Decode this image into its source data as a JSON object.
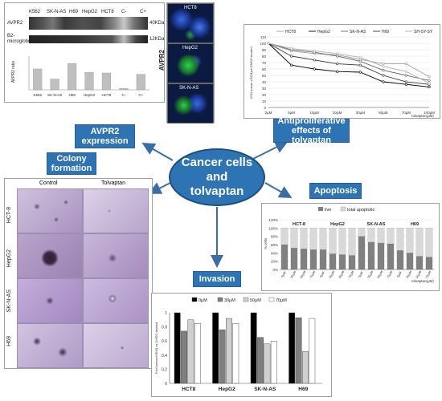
{
  "center": {
    "line1": "Cancer cells",
    "line2": "and",
    "line3": "tolvaptan"
  },
  "labels": {
    "avpr2": "AVPR2 expression",
    "antiprolif": "Antiproliferative effects of tolvaptan",
    "colony": "Colony formation",
    "apoptosis": "Apoptosis",
    "invasion": "Invasion"
  },
  "blot": {
    "cell_lines": [
      "K562",
      "SK-N-AS",
      "H69",
      "HepG2",
      "HCT8",
      "C-",
      "C+"
    ],
    "row1": "AVPR2",
    "row2": "B2-microglobulin",
    "kda1": "40KDa",
    "kda2": "12KDa",
    "ylabel": "AVPR2 ratio",
    "bar_labels": [
      "K562",
      "SK-N-AS",
      "H69",
      "HepG2",
      "HCT8",
      "C-",
      "C+"
    ],
    "bar_values": [
      0.62,
      0.32,
      0.78,
      0.52,
      0.5,
      0.04,
      0.46
    ]
  },
  "micro": {
    "title_top": "HCT8",
    "title_mid": "HepG2",
    "title_bot": "SK-N-AS",
    "side": "AVPR2"
  },
  "prolif": {
    "ylabel": "IC50 (mean ±SEM)vs DMSO-treated",
    "xlabel": "tolvaptan(µM)",
    "categories": [
      "0µM",
      "5µM",
      "10µM",
      "20µM",
      "30µM",
      "50µM",
      "70µM",
      "100µM"
    ],
    "yticks": [
      "110",
      "100",
      "90",
      "80",
      "70",
      "60",
      "50",
      "40",
      "30",
      "20",
      "10",
      "0"
    ],
    "series": [
      {
        "name": "HCT8",
        "values": [
          100,
          88,
          84,
          82,
          75,
          68,
          68,
          48
        ],
        "color": "#9e9e9e"
      },
      {
        "name": "HepG2",
        "values": [
          100,
          66,
          60,
          56,
          55,
          40,
          36,
          32
        ],
        "color": "#000000"
      },
      {
        "name": "SK-N-AS",
        "values": [
          100,
          90,
          86,
          80,
          72,
          58,
          50,
          42
        ],
        "color": "#666666"
      },
      {
        "name": "H69",
        "values": [
          100,
          80,
          74,
          68,
          66,
          50,
          40,
          36
        ],
        "color": "#333333"
      },
      {
        "name": "SH-SY-SY",
        "values": [
          100,
          92,
          88,
          84,
          78,
          64,
          56,
          38
        ],
        "color": "#b0b0b0"
      }
    ]
  },
  "colony_grid": {
    "col1": "Control",
    "col2": "Tolvaptan",
    "rows": [
      "HCT-8",
      "HepG2",
      "SK-N-AS",
      "H69"
    ]
  },
  "apoptosis_chart": {
    "legend_live": "live",
    "legend_apop": "total apoptotic",
    "ylabel": "% cells",
    "yticks": [
      "120%",
      "100%",
      "80%",
      "60%",
      "40%",
      "20%",
      "0%"
    ],
    "groups": [
      {
        "name": "HCT-8",
        "ticks": [
          "0µM",
          "30µM",
          "50µM",
          "70µM"
        ],
        "live": [
          60,
          52,
          50,
          48
        ]
      },
      {
        "name": "HepG2",
        "ticks": [
          "0µM",
          "30µM",
          "50µM",
          "70µM"
        ],
        "live": [
          48,
          38,
          36,
          34
        ]
      },
      {
        "name": "SK-N-AS",
        "ticks": [
          "0µM",
          "30µM",
          "50µM",
          "70µM"
        ],
        "live": [
          80,
          66,
          64,
          62
        ]
      },
      {
        "name": "H69",
        "ticks": [
          "0µM",
          "30µM",
          "50µM",
          "70µM"
        ],
        "live": [
          46,
          40,
          32,
          30
        ]
      }
    ],
    "xlabel": "tolvaptan(µM)"
  },
  "invasion_chart": {
    "legend": [
      "0µM",
      "30µM",
      "50µM",
      "70µM"
    ],
    "ylabel": "Fold (mean±SEM) vs DMSO-treated",
    "yticks": [
      "1",
      "0.8",
      "0.6",
      "0.4",
      "0.2",
      "0"
    ],
    "groups": [
      {
        "name": "HCT8",
        "values": [
          1.0,
          0.74,
          0.9,
          0.85
        ]
      },
      {
        "name": "HepG2",
        "values": [
          1.0,
          0.76,
          0.92,
          0.85
        ]
      },
      {
        "name": "SK-N-AS",
        "values": [
          1.0,
          0.65,
          0.56,
          0.6
        ]
      },
      {
        "name": "H69",
        "values": [
          1.0,
          0.93,
          0.45,
          0.92
        ]
      }
    ]
  }
}
